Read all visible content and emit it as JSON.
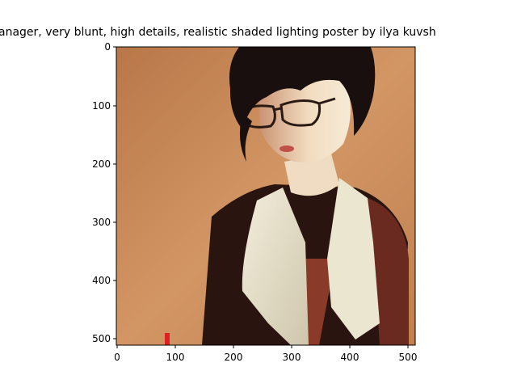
{
  "figure": {
    "title": "anager,  very blunt, high details, realistic shaded lighting poster by ilya kuvsh",
    "x_ticks": [
      "0",
      "100",
      "200",
      "300",
      "400",
      "500"
    ],
    "y_ticks": [
      "0",
      "100",
      "200",
      "300",
      "400",
      "500"
    ],
    "x_range": [
      0,
      512
    ],
    "y_range": [
      0,
      512
    ]
  },
  "image": {
    "description_colors": {
      "background": "#c8885a",
      "hair": "#1a0f0f",
      "skin": "#e8c4a0",
      "jacket": "#2a1410",
      "collar": "#ece6d2",
      "shirt": "#8a3a28",
      "marker": "#e02020"
    },
    "icon": "portrait-image"
  }
}
